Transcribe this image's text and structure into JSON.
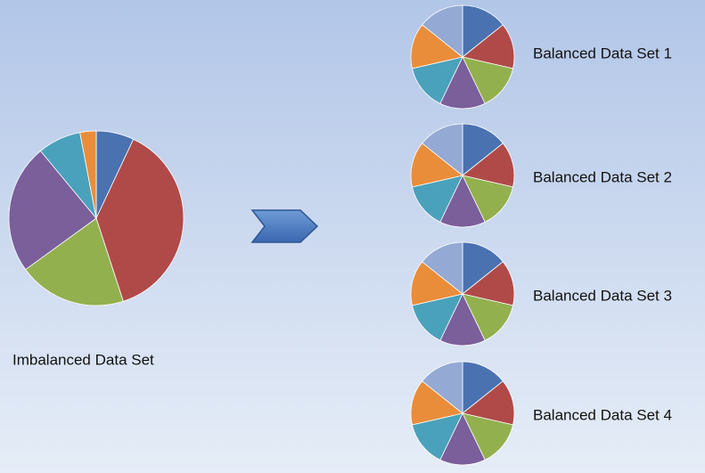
{
  "chart_data": [
    {
      "type": "pie",
      "title": "Imbalanced Data Set",
      "values": [
        7,
        38,
        20,
        24,
        8,
        3
      ],
      "colors": [
        "#4a72b0",
        "#b04a48",
        "#93b04f",
        "#7a5f9b",
        "#4aa1bb",
        "#e98d3a"
      ]
    },
    {
      "type": "pie",
      "title": "Balanced Data Set 1",
      "values": [
        14.3,
        14.3,
        14.3,
        14.3,
        14.3,
        14.3,
        14.3
      ],
      "colors": [
        "#4a72b0",
        "#b04a48",
        "#93b04f",
        "#7a5f9b",
        "#4aa1bb",
        "#e98d3a",
        "#94a9d3"
      ]
    },
    {
      "type": "pie",
      "title": "Balanced Data Set 2",
      "values": [
        14.3,
        14.3,
        14.3,
        14.3,
        14.3,
        14.3,
        14.3
      ],
      "colors": [
        "#4a72b0",
        "#b04a48",
        "#93b04f",
        "#7a5f9b",
        "#4aa1bb",
        "#e98d3a",
        "#94a9d3"
      ]
    },
    {
      "type": "pie",
      "title": "Balanced Data Set 3",
      "values": [
        14.3,
        14.3,
        14.3,
        14.3,
        14.3,
        14.3,
        14.3
      ],
      "colors": [
        "#4a72b0",
        "#b04a48",
        "#93b04f",
        "#7a5f9b",
        "#4aa1bb",
        "#e98d3a",
        "#94a9d3"
      ]
    },
    {
      "type": "pie",
      "title": "Balanced Data Set 4",
      "values": [
        14.3,
        14.3,
        14.3,
        14.3,
        14.3,
        14.3,
        14.3
      ],
      "colors": [
        "#4a72b0",
        "#b04a48",
        "#93b04f",
        "#7a5f9b",
        "#4aa1bb",
        "#e98d3a",
        "#94a9d3"
      ]
    }
  ]
}
